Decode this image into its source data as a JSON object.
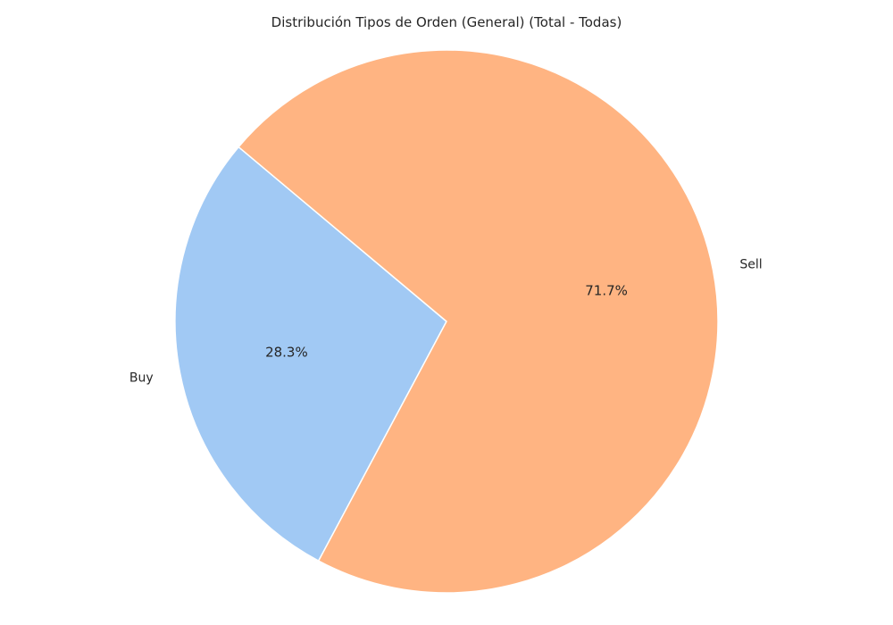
{
  "chart_data": {
    "type": "pie",
    "title": "Distribución Tipos de Orden (General) (Total - Todas)",
    "categories": [
      "Buy",
      "Sell"
    ],
    "values": [
      28.3,
      71.7
    ],
    "value_labels": [
      "28.3%",
      "71.7%"
    ],
    "colors": [
      "#a1c9f4",
      "#ffb482"
    ],
    "start_angle_deg": 140,
    "direction": "counterclockwise",
    "edge_color": "#ffffff"
  }
}
